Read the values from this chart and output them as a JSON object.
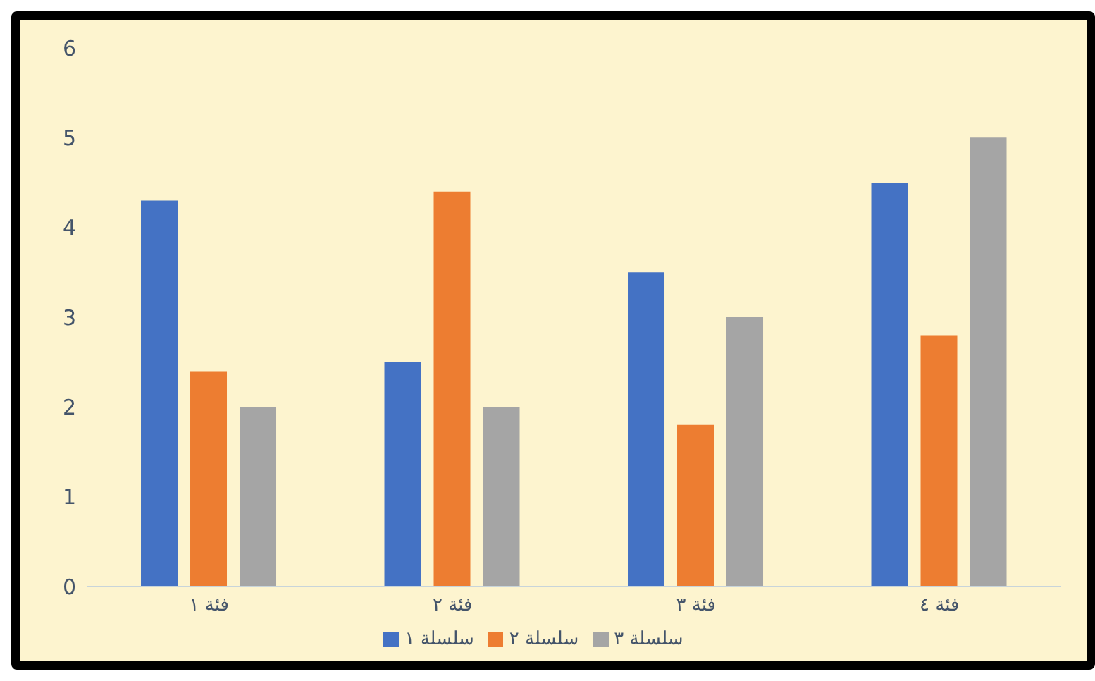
{
  "chart_data": {
    "type": "bar",
    "categories": [
      "فئة ١",
      "فئة ٢",
      "فئة ٣",
      "فئة ٤"
    ],
    "series": [
      {
        "name": "سلسلة ١",
        "color": "#4472c4",
        "values": [
          4.3,
          2.5,
          3.5,
          4.5
        ]
      },
      {
        "name": "سلسلة ٢",
        "color": "#ed7d31",
        "values": [
          2.4,
          4.4,
          1.8,
          2.8
        ]
      },
      {
        "name": "سلسلة ٣",
        "color": "#a5a5a5",
        "values": [
          2,
          2,
          3,
          5
        ]
      }
    ],
    "ylim": [
      0,
      6
    ],
    "yticks": [
      0,
      1,
      2,
      3,
      4,
      5,
      6
    ],
    "grid": false,
    "legend": "bottom"
  }
}
